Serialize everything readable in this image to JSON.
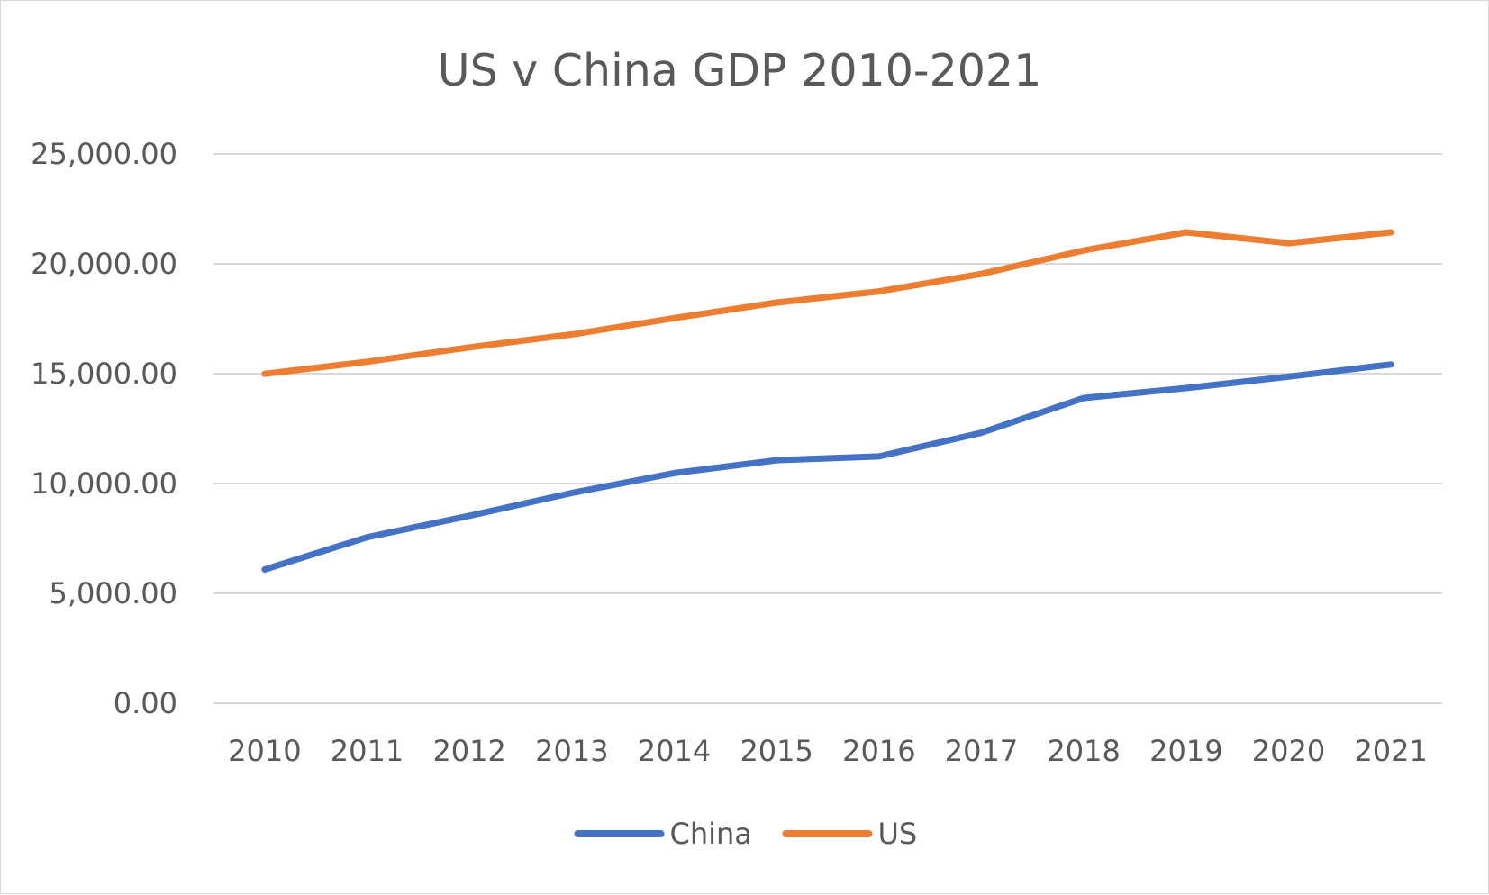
{
  "chart_data": {
    "type": "line",
    "title": "US v China GDP 2010-2021",
    "xlabel": "",
    "ylabel": "",
    "categories": [
      "2010",
      "2011",
      "2012",
      "2013",
      "2014",
      "2015",
      "2016",
      "2017",
      "2018",
      "2019",
      "2020",
      "2021"
    ],
    "yticks": [
      "0.00",
      "5,000.00",
      "10,000.00",
      "15,000.00",
      "20,000.00",
      "25,000.00"
    ],
    "ylim": [
      0,
      25000
    ],
    "grid": true,
    "legend": "bottom",
    "series": [
      {
        "name": "China",
        "color": "#4472c4",
        "values": [
          6087,
          7552,
          8532,
          9570,
          10476,
          11062,
          11233,
          12310,
          13895,
          14343,
          14863,
          15420
        ]
      },
      {
        "name": "US",
        "color": "#ed7d31",
        "values": [
          14992,
          15543,
          16197,
          16785,
          17527,
          18238,
          18745,
          19543,
          20612,
          21433,
          20937,
          21433
        ]
      }
    ]
  }
}
